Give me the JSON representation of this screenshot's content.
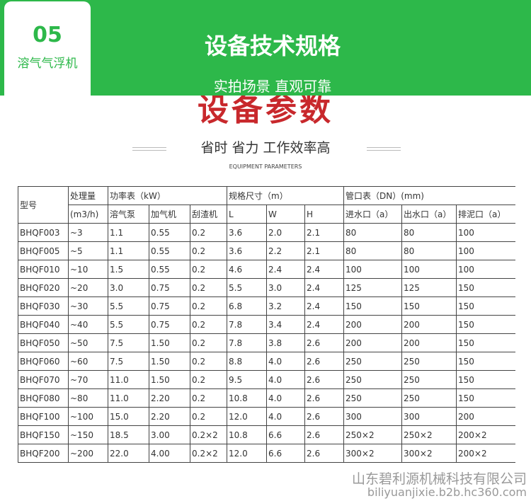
{
  "header": {
    "badge_number": "05",
    "badge_label": "溶气气浮机",
    "title": "设备技术规格",
    "subtitle": "实拍场景 直观可靠"
  },
  "section": {
    "title": "设备参数",
    "slogan": "省时 省力 工作效率高",
    "english": "EQUIPMENT PARAMETERS"
  },
  "table": {
    "group_headers": [
      "型号",
      "处理量",
      "功率表（kW）",
      "规格尺寸（m）",
      "管口表（DN）(mm)"
    ],
    "sub_headers": [
      "(m3/h)",
      "溶气泵",
      "加气机",
      "刮渣机",
      "L",
      "W",
      "H",
      "进水口（a）",
      "出水口（a）",
      "排泥口（a）"
    ],
    "rows": [
      [
        "BHQF003",
        "~3",
        "1.1",
        "0.55",
        "0.2",
        "3.6",
        "2.0",
        "2.1",
        "80",
        "80",
        "100"
      ],
      [
        "BHQF005",
        "~5",
        "1.1",
        "0.55",
        "0.2",
        "3.6",
        "2.2",
        "2.1",
        "80",
        "80",
        "100"
      ],
      [
        "BHQF010",
        "~10",
        "1.5",
        "0.55",
        "0.2",
        "4.6",
        "2.4",
        "2.4",
        "100",
        "100",
        "100"
      ],
      [
        "BHQF020",
        "~20",
        "3.0",
        "0.75",
        "0.2",
        "5.5",
        "3.0",
        "2.4",
        "125",
        "125",
        "150"
      ],
      [
        "BHQF030",
        "~30",
        "5.5",
        "0.75",
        "0.2",
        "6.8",
        "3.2",
        "2.4",
        "150",
        "150",
        "150"
      ],
      [
        "BHQF040",
        "~40",
        "5.5",
        "0.75",
        "0.2",
        "7.8",
        "3.4",
        "2.4",
        "200",
        "200",
        "150"
      ],
      [
        "BHQF050",
        "~50",
        "7.5",
        "1.50",
        "0.2",
        "7.8",
        "3.8",
        "2.6",
        "200",
        "200",
        "150"
      ],
      [
        "BHQF060",
        "~60",
        "7.5",
        "1.50",
        "0.2",
        "8.8",
        "4.0",
        "2.6",
        "250",
        "250",
        "150"
      ],
      [
        "BHQF070",
        "~70",
        "11.0",
        "1.50",
        "0.2",
        "9.5",
        "4.0",
        "2.6",
        "250",
        "250",
        "150"
      ],
      [
        "BHQF080",
        "~80",
        "11.0",
        "2.20",
        "0.2",
        "10.8",
        "4.0",
        "2.6",
        "250",
        "250",
        "150"
      ],
      [
        "BHQF100",
        "~100",
        "15.0",
        "2.20",
        "0.2",
        "12.0",
        "4.0",
        "2.6",
        "300",
        "300",
        "200"
      ],
      [
        "BHQF150",
        "~150",
        "18.5",
        "3.00",
        "0.2×2",
        "10.8",
        "6.6",
        "2.6",
        "250×2",
        "250×2",
        "200×2"
      ],
      [
        "BHQF200",
        "~200",
        "22.0",
        "4.00",
        "0.2×2",
        "12.0",
        "6.6",
        "2.6",
        "300×2",
        "300×2",
        "200×2"
      ]
    ]
  },
  "watermark": {
    "company": "山东碧利源机械科技有限公司",
    "site": "biliyuanjixie.b2b.hc360.com"
  }
}
